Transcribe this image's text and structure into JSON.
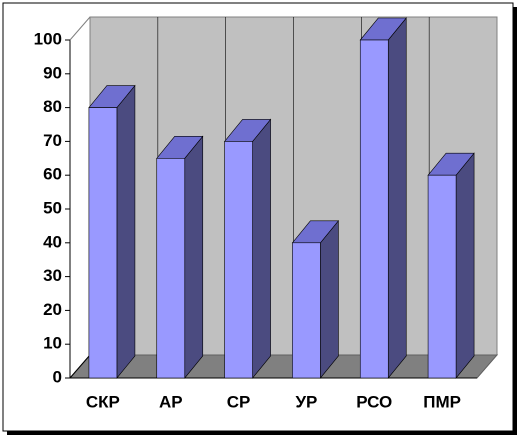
{
  "chart_data": {
    "type": "bar3d",
    "categories": [
      "СКР",
      "АР",
      "СР",
      "УР",
      "РСО",
      "ПМР"
    ],
    "values": [
      80,
      65,
      70,
      40,
      100,
      60
    ],
    "color": "#9999ff",
    "ylim": [
      0,
      100
    ],
    "yticks": [
      0,
      10,
      20,
      30,
      40,
      50,
      60,
      70,
      80,
      90,
      100
    ]
  }
}
